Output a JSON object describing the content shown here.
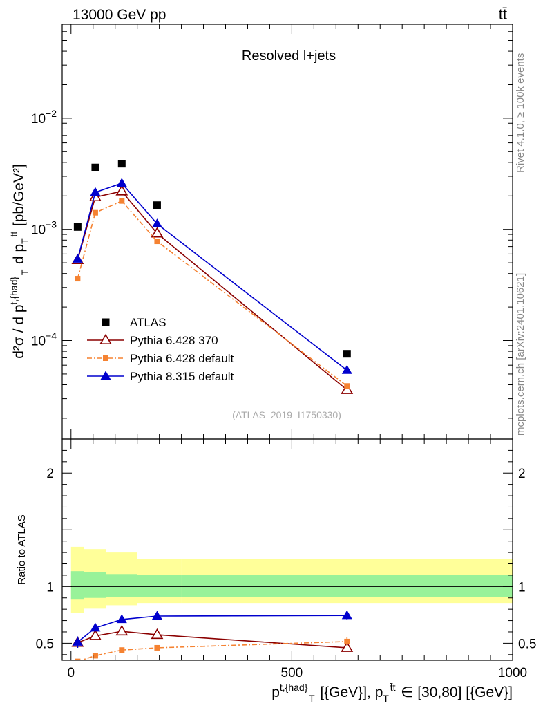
{
  "header": {
    "left": "13000 GeV pp",
    "right": "tt̄",
    "side_top": "Rivet 4.1.0, ≥ 100k events",
    "side_bottom": "mcplots.cern.ch [arXiv:2401.10621]"
  },
  "chart_data": {
    "type": "line",
    "title": "Resolved l+jets",
    "analysis_tag": "(ATLAS_2019_I1750330)",
    "xlabel": "p^{t,{had}}_{T} [{GeV}], p_{T}^{t̄t} ∈ [30,80] [{GeV}]",
    "ylabel_main": "d²σ / d p^{t,{had}}_{T} d p_{T}^{t̄t} [pb/GeV²]",
    "ylabel_ratio": "Ratio to ATLAS",
    "xlim": [
      -20,
      1000
    ],
    "xticks": [
      "0",
      "500",
      "1000"
    ],
    "ylim_main": [
      1.3e-05,
      0.07
    ],
    "yscale_main": "log",
    "yticks_main": [
      "10^-4",
      "10^-3",
      "10^-2"
    ],
    "ylim_ratio": [
      0.35,
      2.3
    ],
    "yticks_ratio": [
      "0.5",
      "1",
      "2"
    ],
    "bins": [
      [
        0,
        30
      ],
      [
        30,
        80
      ],
      [
        80,
        150
      ],
      [
        150,
        250
      ],
      [
        250,
        1000
      ]
    ],
    "x": [
      15,
      55,
      115,
      195,
      625
    ],
    "series": [
      {
        "name": "ATLAS",
        "color": "#000000",
        "marker": "square",
        "line": "none",
        "values": [
          0.00105,
          0.0036,
          0.0039,
          0.00165,
          7.6e-05
        ]
      },
      {
        "name": "Pythia 6.428 370",
        "color": "#8b0000",
        "marker": "open-triangle",
        "line": "solid",
        "values": [
          0.00053,
          0.00195,
          0.0022,
          0.00092,
          3.6e-05
        ],
        "ratio": [
          0.505,
          0.565,
          0.605,
          0.575,
          0.46
        ],
        "ratio_err": [
          0.045,
          0.02,
          0.018,
          0.02,
          0.03
        ]
      },
      {
        "name": "Pythia 6.428 default",
        "color": "#f58231",
        "marker": "square",
        "line": "dashdot",
        "values": [
          0.00036,
          0.00141,
          0.0018,
          0.00078,
          3.9e-05
        ],
        "ratio": [
          0.34,
          0.39,
          0.44,
          0.46,
          0.515
        ],
        "ratio_err": [
          0.02,
          0.015,
          0.015,
          0.02,
          0.04
        ]
      },
      {
        "name": "Pythia 8.315 default",
        "color": "#0000cd",
        "marker": "triangle",
        "line": "solid",
        "values": [
          0.00054,
          0.00215,
          0.0026,
          0.00112,
          5.4e-05
        ],
        "ratio": [
          0.51,
          0.635,
          0.71,
          0.74,
          0.745
        ],
        "ratio_err": [
          0.05,
          0.02,
          0.02,
          0.025,
          0.035
        ]
      }
    ],
    "uncertainty_bands": {
      "stat_green": [
        [
          0.885,
          1.135
        ],
        [
          0.9,
          1.13
        ],
        [
          0.905,
          1.11
        ],
        [
          0.905,
          1.1
        ],
        [
          0.905,
          1.1
        ]
      ],
      "total_yellow": [
        [
          0.77,
          1.35
        ],
        [
          0.805,
          1.33
        ],
        [
          0.835,
          1.3
        ],
        [
          0.855,
          1.24
        ],
        [
          0.855,
          1.24
        ]
      ]
    },
    "legend_position": "lower-left"
  }
}
